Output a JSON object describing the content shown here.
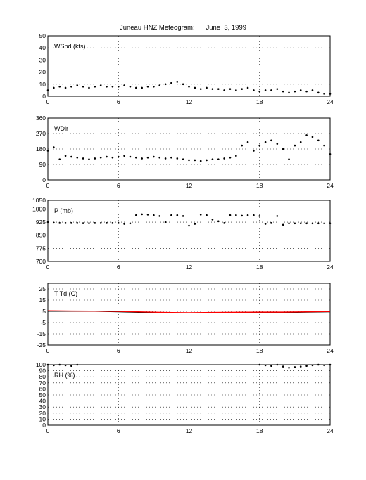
{
  "title": "Juneau HNZ Meteogram:      June  3, 1999",
  "colors": {
    "dots": "#000000",
    "temp_line": "#ff0000",
    "grid": "#000000"
  },
  "chart_data": [
    {
      "type": "scatter",
      "label": "WSpd (kts)",
      "x_ticks": [
        0,
        6,
        12,
        18,
        24
      ],
      "y_ticks": [
        0,
        10,
        20,
        30,
        40,
        50
      ],
      "xlim": [
        0,
        24
      ],
      "ylim": [
        0,
        50
      ],
      "grid": "dotted",
      "series": [
        {
          "x": [
            0,
            0.5,
            1,
            1.5,
            2,
            2.5,
            3,
            3.5,
            4,
            4.5,
            5,
            5.5,
            6,
            6.5,
            7,
            7.5,
            8,
            8.5,
            9,
            9.5,
            10,
            10.5,
            11,
            11.5,
            12,
            12.5,
            13,
            13.5,
            14,
            14.5,
            15,
            15.5,
            16,
            16.5,
            17,
            17.5,
            18,
            18.5,
            19,
            19.5,
            20,
            20.5,
            21,
            21.5,
            22,
            22.5,
            23,
            23.5,
            24
          ],
          "y": [
            5,
            7,
            8,
            7,
            8,
            9,
            8,
            7,
            8,
            9,
            8,
            8,
            8,
            9,
            8,
            7,
            7,
            8,
            8,
            9,
            10,
            11,
            12,
            10,
            8,
            7,
            6,
            7,
            6,
            6,
            5,
            6,
            5,
            6,
            7,
            5,
            4,
            5,
            5,
            6,
            4,
            3,
            4,
            5,
            4,
            5,
            3,
            2,
            2
          ]
        }
      ]
    },
    {
      "type": "scatter",
      "label": "WDir",
      "x_ticks": [
        0,
        6,
        12,
        18,
        24
      ],
      "y_ticks": [
        0,
        90,
        180,
        270,
        360
      ],
      "xlim": [
        0,
        24
      ],
      "ylim": [
        0,
        360
      ],
      "grid": "dotted",
      "series": [
        {
          "x": [
            0,
            0.5,
            1,
            1.5,
            2,
            2.5,
            3,
            3.5,
            4,
            4.5,
            5,
            5.5,
            6,
            6.5,
            7,
            7.5,
            8,
            8.5,
            9,
            9.5,
            10,
            10.5,
            11,
            11.5,
            12,
            12.5,
            13,
            13.5,
            14,
            14.5,
            15,
            15.5,
            16,
            16.5,
            17,
            17.5,
            18,
            18.5,
            19,
            19.5,
            20,
            20.5,
            21,
            21.5,
            22,
            22.5,
            23,
            23.5,
            24
          ],
          "y": [
            170,
            190,
            120,
            140,
            135,
            130,
            125,
            120,
            125,
            130,
            135,
            130,
            135,
            140,
            135,
            130,
            125,
            130,
            135,
            130,
            125,
            130,
            125,
            120,
            115,
            115,
            110,
            115,
            120,
            120,
            125,
            130,
            140,
            200,
            220,
            170,
            200,
            220,
            230,
            210,
            180,
            120,
            200,
            220,
            260,
            250,
            230,
            200,
            150
          ]
        }
      ]
    },
    {
      "type": "scatter",
      "label": "P (mb)",
      "x_ticks": [
        0,
        6,
        12,
        18,
        24
      ],
      "y_ticks": [
        700,
        775,
        850,
        925,
        1000,
        1050
      ],
      "xlim": [
        0,
        24
      ],
      "ylim": [
        700,
        1050
      ],
      "grid": "dotted",
      "series": [
        {
          "x": [
            0,
            0.5,
            1,
            1.5,
            2,
            2.5,
            3,
            3.5,
            4,
            4.5,
            5,
            5.5,
            6,
            6.5,
            7,
            7.5,
            8,
            8.5,
            9,
            9.5,
            10,
            10.5,
            11,
            11.5,
            12,
            12.5,
            13,
            13.5,
            14,
            14.5,
            15,
            15.5,
            16,
            16.5,
            17,
            17.5,
            18,
            18.5,
            19,
            19.5,
            20,
            20.5,
            21,
            21.5,
            22,
            22.5,
            23,
            23.5,
            24
          ],
          "y": [
            925,
            922,
            920,
            920,
            920,
            920,
            919,
            919,
            920,
            920,
            920,
            920,
            920,
            915,
            918,
            965,
            970,
            968,
            965,
            960,
            925,
            965,
            965,
            960,
            905,
            915,
            968,
            965,
            940,
            930,
            920,
            965,
            965,
            962,
            965,
            965,
            960,
            915,
            920,
            960,
            910,
            918,
            918,
            918,
            918,
            918,
            918,
            918,
            918
          ]
        }
      ]
    },
    {
      "type": "line",
      "label": "T Td (C)",
      "x_ticks": [
        0,
        6,
        12,
        18,
        24
      ],
      "y_ticks": [
        -25,
        -15,
        -5,
        5,
        15,
        25
      ],
      "xlim": [
        0,
        24
      ],
      "ylim": [
        -25,
        30
      ],
      "grid": "dotted",
      "series": [
        {
          "x": [
            0,
            2,
            4,
            6,
            8,
            10,
            12,
            14,
            16,
            18,
            20,
            22,
            24
          ],
          "y": [
            5,
            5,
            5,
            4.5,
            4,
            3.5,
            3.5,
            3.8,
            4,
            4,
            3.8,
            4.2,
            4.5
          ]
        },
        {
          "x": [
            0,
            2,
            4,
            6,
            8,
            10,
            12,
            14,
            16,
            18,
            20,
            22,
            24
          ],
          "y": [
            5.5,
            5.3,
            5.2,
            5,
            4.5,
            4,
            3.8,
            4,
            4.2,
            4.3,
            4.3,
            4.6,
            4.9
          ]
        }
      ]
    },
    {
      "type": "scatter",
      "label": "RH (%)",
      "x_ticks": [
        0,
        6,
        12,
        18,
        24
      ],
      "y_ticks": [
        0,
        10,
        20,
        30,
        40,
        50,
        60,
        70,
        80,
        90,
        100
      ],
      "xlim": [
        0,
        24
      ],
      "ylim": [
        0,
        100
      ],
      "grid": "dotted",
      "series": [
        {
          "x": [
            0,
            0.5,
            1,
            1.5,
            2,
            2.5,
            18,
            18.5,
            19,
            19.5,
            20,
            20.5,
            21,
            21.5,
            22,
            22.5,
            23,
            23.5,
            24
          ],
          "y": [
            100,
            99,
            100,
            99,
            98,
            100,
            100,
            99,
            98,
            100,
            97,
            95,
            96,
            97,
            98,
            99,
            100,
            99,
            100
          ]
        }
      ]
    }
  ]
}
